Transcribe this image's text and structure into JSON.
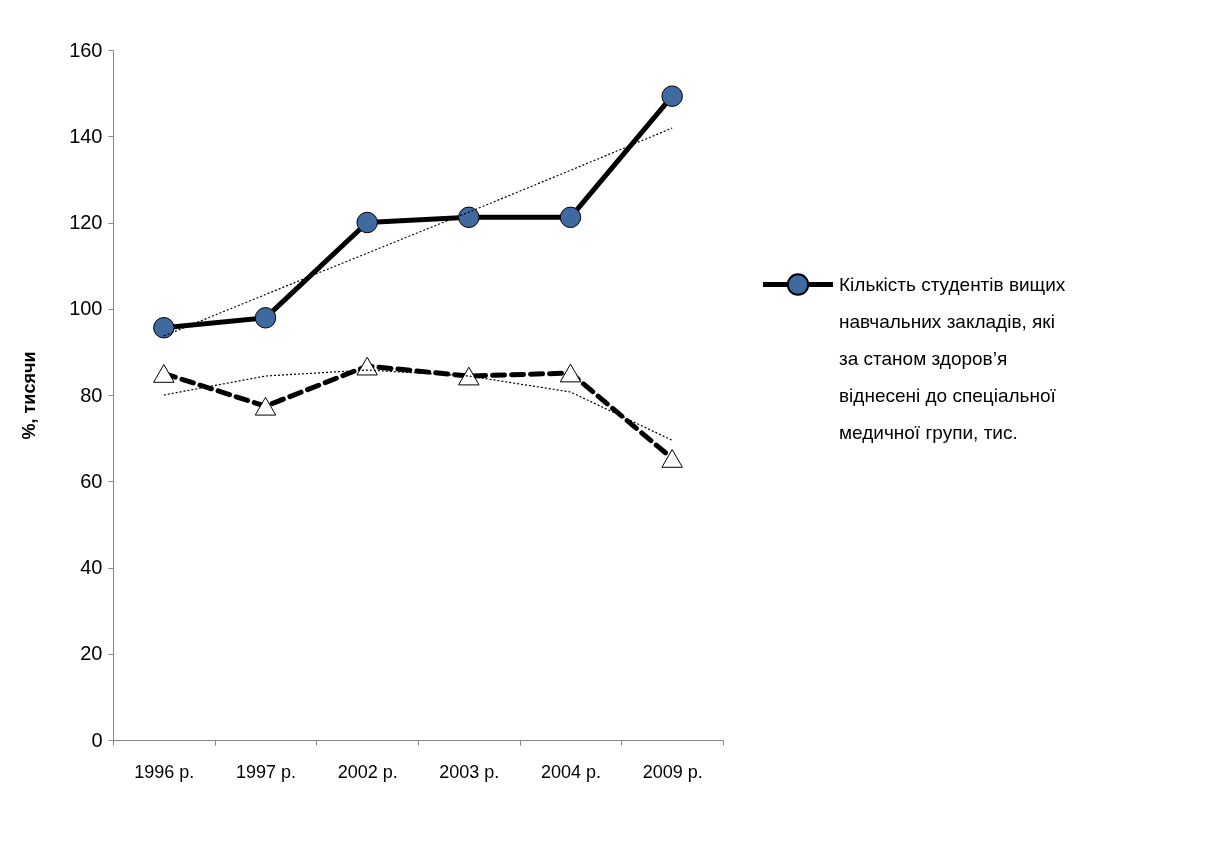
{
  "chart_data": {
    "type": "line",
    "ylabel": "%, тисячи",
    "categories": [
      "1996 р.",
      "1997 р.",
      "2002 р.",
      "2003 р.",
      "2004 р.",
      "2009 р."
    ],
    "series": [
      {
        "name": "Кількість студентів вищих навчальних закладів, які за станом здоров’я віднесені до спеціальної медичної групи, тис.",
        "color": "#3f6aa0",
        "values": [
          95.6,
          97.9,
          120,
          121.2,
          121.2,
          149.3
        ],
        "marker": "circle",
        "line_style": "solid"
      },
      {
        "color": "#ffffff",
        "values": [
          85,
          77.4,
          86.7,
          84.4,
          85.1,
          65.3
        ],
        "marker": "triangle",
        "line_style": "dashed"
      },
      {
        "type": "line",
        "color": "#000000",
        "values": [
          93.7,
          103.3,
          112.9,
          122.4,
          132.1,
          141.9
        ],
        "marker": "none",
        "line_style": "dotted"
      },
      {
        "type": "line",
        "color": "#000000",
        "values": [
          80,
          84.4,
          85.8,
          84.4,
          80.7,
          69.5
        ],
        "marker": "none",
        "line_style": "dotted"
      }
    ],
    "ylim": [
      0,
      160
    ],
    "yticks": [
      0,
      20,
      40,
      60,
      80,
      100,
      120,
      140,
      160
    ],
    "grid": false,
    "legend": "right"
  }
}
